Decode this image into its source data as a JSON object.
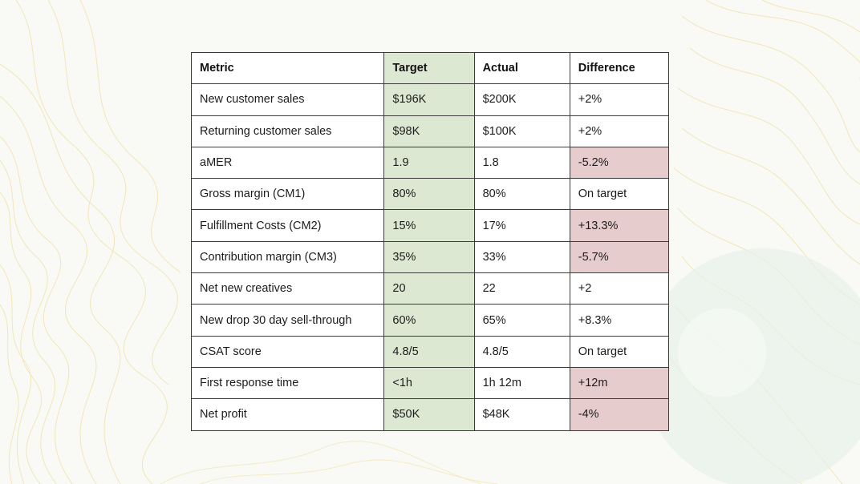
{
  "table": {
    "headers": {
      "metric": "Metric",
      "target": "Target",
      "actual": "Actual",
      "difference": "Difference"
    },
    "rows": [
      {
        "metric": "New customer sales",
        "target": "$196K",
        "actual": "$200K",
        "difference": "+2%",
        "status": "neutral"
      },
      {
        "metric": "Returning customer sales",
        "target": "$98K",
        "actual": "$100K",
        "difference": "+2%",
        "status": "neutral"
      },
      {
        "metric": "aMER",
        "target": "1.9",
        "actual": "1.8",
        "difference": "-5.2%",
        "status": "negative"
      },
      {
        "metric": "Gross margin (CM1)",
        "target": "80%",
        "actual": "80%",
        "difference": "On target",
        "status": "neutral"
      },
      {
        "metric": "Fulfillment Costs (CM2)",
        "target": "15%",
        "actual": "17%",
        "difference": "+13.3%",
        "status": "negative"
      },
      {
        "metric": "Contribution margin (CM3)",
        "target": "35%",
        "actual": "33%",
        "difference": "-5.7%",
        "status": "negative"
      },
      {
        "metric": "Net new creatives",
        "target": "20",
        "actual": "22",
        "difference": "+2",
        "status": "neutral"
      },
      {
        "metric": "New drop 30 day sell-through",
        "target": "60%",
        "actual": "65%",
        "difference": "+8.3%",
        "status": "neutral"
      },
      {
        "metric": "CSAT score",
        "target": "4.8/5",
        "actual": "4.8/5",
        "difference": "On target",
        "status": "neutral"
      },
      {
        "metric": "First response time",
        "target": "<1h",
        "actual": "1h 12m",
        "difference": "+12m",
        "status": "negative"
      },
      {
        "metric": "Net profit",
        "target": "$50K",
        "actual": "$48K",
        "difference": "-4%",
        "status": "negative"
      }
    ]
  },
  "colors": {
    "page_background": "#f9faf6",
    "target_column": "#dde8d2",
    "negative_difference": "#e6cccd",
    "contour_lines": "#f0e2a6",
    "circle_accent": "#e7f1ea"
  }
}
